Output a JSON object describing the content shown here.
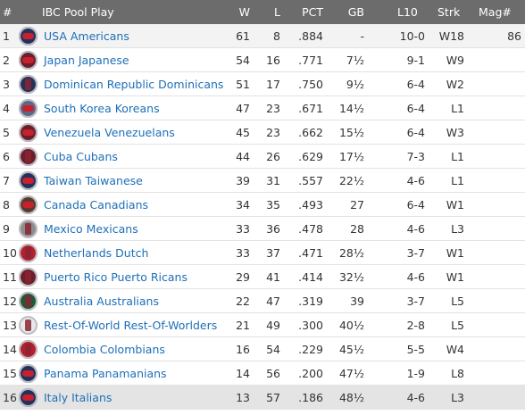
{
  "table": {
    "headers": {
      "rank": "#",
      "team": "IBC Pool Play",
      "w": "W",
      "l": "L",
      "pct": "PCT",
      "gb": "GB",
      "l10": "L10",
      "strk": "Strk",
      "mag": "Mag#"
    },
    "rows": [
      {
        "rank": "1",
        "team": "USA Americans",
        "w": "61",
        "l": "8",
        "pct": ".884",
        "gb": "-",
        "l10": "10-0",
        "strk": "W18",
        "mag": "86",
        "logo_icon": "usa-americans-logo-icon"
      },
      {
        "rank": "2",
        "team": "Japan Japanese",
        "w": "54",
        "l": "16",
        "pct": ".771",
        "gb": "7½",
        "l10": "9-1",
        "strk": "W9",
        "mag": "",
        "logo_icon": "japan-japanese-logo-icon"
      },
      {
        "rank": "3",
        "team": "Dominican Republic Dominicans",
        "w": "51",
        "l": "17",
        "pct": ".750",
        "gb": "9½",
        "l10": "6-4",
        "strk": "W2",
        "mag": "",
        "logo_icon": "dominican-republic-logo-icon"
      },
      {
        "rank": "4",
        "team": "South Korea Koreans",
        "w": "47",
        "l": "23",
        "pct": ".671",
        "gb": "14½",
        "l10": "6-4",
        "strk": "L1",
        "mag": "",
        "logo_icon": "south-korea-logo-icon"
      },
      {
        "rank": "5",
        "team": "Venezuela Venezuelans",
        "w": "45",
        "l": "23",
        "pct": ".662",
        "gb": "15½",
        "l10": "6-4",
        "strk": "W3",
        "mag": "",
        "logo_icon": "venezuela-logo-icon"
      },
      {
        "rank": "6",
        "team": "Cuba Cubans",
        "w": "44",
        "l": "26",
        "pct": ".629",
        "gb": "17½",
        "l10": "7-3",
        "strk": "L1",
        "mag": "",
        "logo_icon": "cuba-logo-icon"
      },
      {
        "rank": "7",
        "team": "Taiwan Taiwanese",
        "w": "39",
        "l": "31",
        "pct": ".557",
        "gb": "22½",
        "l10": "4-6",
        "strk": "L1",
        "mag": "",
        "logo_icon": "taiwan-logo-icon"
      },
      {
        "rank": "8",
        "team": "Canada Canadians",
        "w": "34",
        "l": "35",
        "pct": ".493",
        "gb": "27",
        "l10": "6-4",
        "strk": "W1",
        "mag": "",
        "logo_icon": "canada-logo-icon"
      },
      {
        "rank": "9",
        "team": "Mexico Mexicans",
        "w": "33",
        "l": "36",
        "pct": ".478",
        "gb": "28",
        "l10": "4-6",
        "strk": "L3",
        "mag": "",
        "logo_icon": "mexico-logo-icon"
      },
      {
        "rank": "10",
        "team": "Netherlands Dutch",
        "w": "33",
        "l": "37",
        "pct": ".471",
        "gb": "28½",
        "l10": "3-7",
        "strk": "W1",
        "mag": "",
        "logo_icon": "netherlands-logo-icon"
      },
      {
        "rank": "11",
        "team": "Puerto Rico Puerto Ricans",
        "w": "29",
        "l": "41",
        "pct": ".414",
        "gb": "32½",
        "l10": "4-6",
        "strk": "W1",
        "mag": "",
        "logo_icon": "puerto-rico-logo-icon"
      },
      {
        "rank": "12",
        "team": "Australia Australians",
        "w": "22",
        "l": "47",
        "pct": ".319",
        "gb": "39",
        "l10": "3-7",
        "strk": "L5",
        "mag": "",
        "logo_icon": "australia-logo-icon"
      },
      {
        "rank": "13",
        "team": "Rest-Of-World Rest-Of-Worlders",
        "w": "21",
        "l": "49",
        "pct": ".300",
        "gb": "40½",
        "l10": "2-8",
        "strk": "L5",
        "mag": "",
        "logo_icon": "rest-of-world-logo-icon"
      },
      {
        "rank": "14",
        "team": "Colombia Colombians",
        "w": "16",
        "l": "54",
        "pct": ".229",
        "gb": "45½",
        "l10": "5-5",
        "strk": "W4",
        "mag": "",
        "logo_icon": "colombia-logo-icon"
      },
      {
        "rank": "15",
        "team": "Panama Panamanians",
        "w": "14",
        "l": "56",
        "pct": ".200",
        "gb": "47½",
        "l10": "1-9",
        "strk": "L8",
        "mag": "",
        "logo_icon": "panama-logo-icon"
      },
      {
        "rank": "16",
        "team": "Italy Italians",
        "w": "13",
        "l": "57",
        "pct": ".186",
        "gb": "48½",
        "l10": "4-6",
        "strk": "L3",
        "mag": "",
        "logo_icon": "italy-logo-icon"
      }
    ]
  },
  "colors": {
    "header_bg": "#6c6c6c",
    "header_text": "#ffffff",
    "link": "#1d6fb8",
    "first_row_bg": "#f3f3f3",
    "last_row_bg": "#e4e4e4"
  }
}
